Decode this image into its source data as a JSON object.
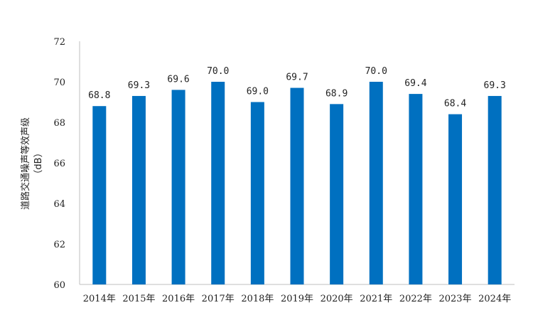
{
  "chart_data": {
    "type": "bar",
    "title": "",
    "xlabel": "",
    "ylabel": "道路交通噪声等效声级",
    "ylabel_unit": "（dB）",
    "categories": [
      "2014年",
      "2015年",
      "2016年",
      "2017年",
      "2018年",
      "2019年",
      "2020年",
      "2021年",
      "2022年",
      "2023年",
      "2024年"
    ],
    "values": [
      68.8,
      69.3,
      69.6,
      70.0,
      69.0,
      69.7,
      68.9,
      70.0,
      69.4,
      68.4,
      69.3
    ],
    "data_labels": [
      "68.8",
      "69.3",
      "69.6",
      "70.0",
      "69.0",
      "69.7",
      "68.9",
      "70.0",
      "69.4",
      "68.4",
      "69.3"
    ],
    "ylim": [
      60,
      72
    ],
    "yticks": [
      60,
      62,
      64,
      66,
      68,
      70,
      72
    ],
    "grid": false,
    "legend": "none",
    "bar_color": "#0070C0",
    "axis_color": "#BFBFBF"
  }
}
